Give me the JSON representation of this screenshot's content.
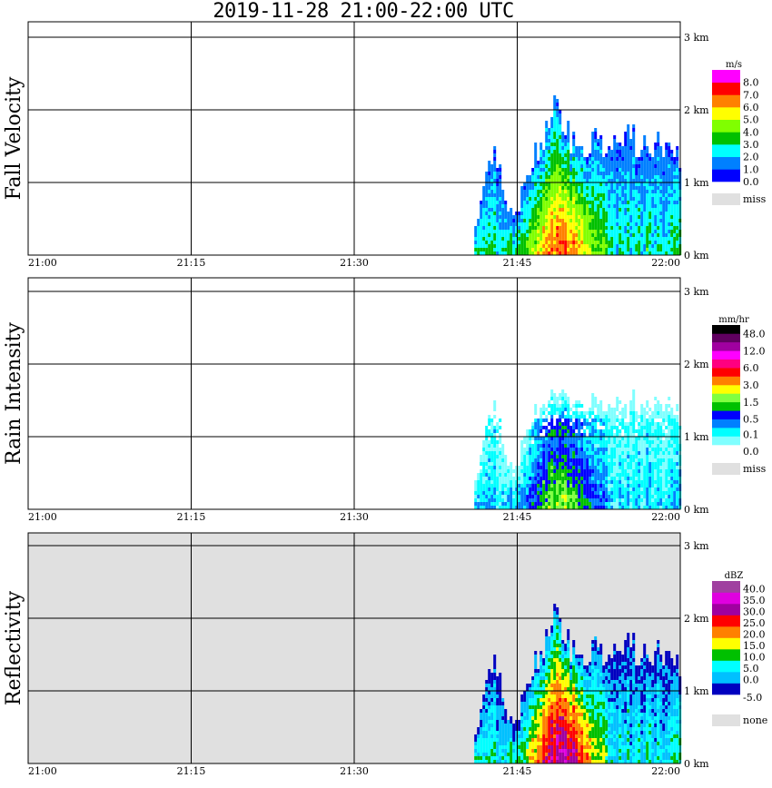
{
  "title": "2019-11-28   21:00-22:00 UTC",
  "chart_data": [
    {
      "type": "heatmap",
      "ylabel": "Fall Velocity",
      "unit": "m/s",
      "legend_colors": [
        "#0000ff",
        "#0080ff",
        "#00ffff",
        "#00c000",
        "#80ff00",
        "#ffff00",
        "#ff8000",
        "#ff0000",
        "#ff00ff"
      ],
      "legend_labels": [
        "0.0",
        "1.0",
        "2.0",
        "3.0",
        "4.0",
        "5.0",
        "6.0",
        "7.0",
        "8.0"
      ],
      "missing_label": "miss",
      "missing_color": "#e0e0e0",
      "background": "#ffffff",
      "field": "velocity"
    },
    {
      "type": "heatmap",
      "ylabel": "Rain Intensity",
      "unit": "mm/hr",
      "legend_colors": [
        "#80ffff",
        "#00ffff",
        "#0080ff",
        "#0000ff",
        "#00c000",
        "#80ff40",
        "#ffff00",
        "#ff8000",
        "#ff0000",
        "#ff0080",
        "#ff00ff",
        "#a000a0",
        "#600060",
        "#000000"
      ],
      "legend_labels": [
        "0.0",
        "0.1",
        "0.5",
        "1.5",
        "3.0",
        "6.0",
        "12.0",
        "48.0"
      ],
      "missing_label": "miss",
      "missing_color": "#e0e0e0",
      "background": "#ffffff",
      "field": "rain"
    },
    {
      "type": "heatmap",
      "ylabel": "Reflectivity",
      "unit": "dBZ",
      "legend_colors": [
        "#0000c0",
        "#00c0ff",
        "#00ffff",
        "#00c000",
        "#ffff00",
        "#ff8000",
        "#ff0000",
        "#a000a0",
        "#e000e0",
        "#a040a0"
      ],
      "legend_labels": [
        "-5.0",
        "0.0",
        "5.0",
        "10.0",
        "15.0",
        "20.0",
        "25.0",
        "30.0",
        "35.0",
        "40.0"
      ],
      "missing_label": "none",
      "missing_color": "#e0e0e0",
      "background": "#e0e0e0",
      "field": "dbz"
    }
  ],
  "x_ticks": [
    "21:00",
    "21:15",
    "21:30",
    "21:45",
    "22:00"
  ],
  "y_ticks": [
    "0 km",
    "1 km",
    "2 km",
    "3 km"
  ],
  "ylim_km": [
    0,
    3.2
  ],
  "echo_top_minutes": [
    41,
    42,
    43,
    44,
    45,
    46,
    47,
    48,
    49,
    50,
    51,
    52,
    53,
    54,
    55,
    56,
    57,
    58,
    59,
    60
  ],
  "echo_top_km": [
    0.3,
    1.1,
    1.4,
    0.5,
    0.6,
    1.2,
    1.5,
    1.95,
    1.8,
    1.6,
    1.5,
    1.6,
    1.5,
    1.6,
    1.7,
    1.5,
    1.4,
    1.5,
    1.4,
    1.3
  ]
}
